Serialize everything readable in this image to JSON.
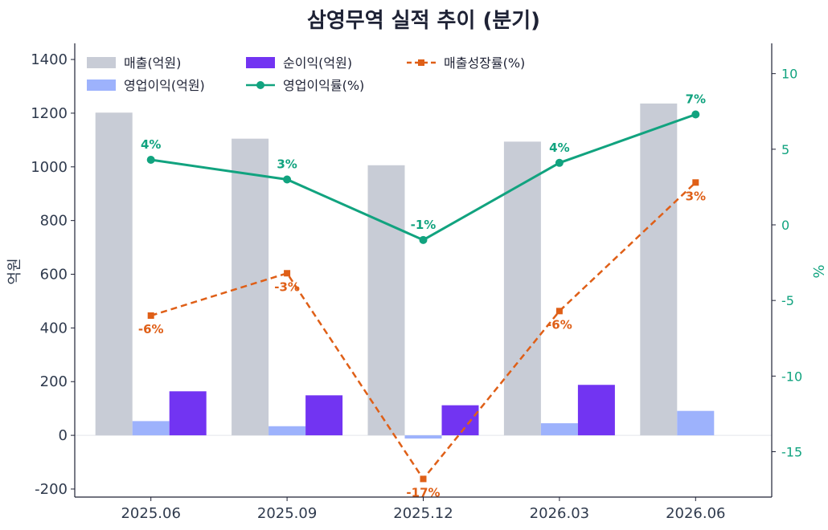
{
  "chart_data": {
    "type": "bar",
    "title": "삼영무역 실적 추이 (분기)",
    "categories": [
      "2025.06",
      "2025.09",
      "2025.12",
      "2026.03",
      "2026.06"
    ],
    "ylabel": "억원",
    "y2label": "%",
    "ylim": [
      -230,
      1460
    ],
    "y2lim": [
      -18,
      12
    ],
    "yticks": [
      -200,
      0,
      200,
      400,
      600,
      800,
      1000,
      1200,
      1400
    ],
    "y2ticks": [
      -15,
      -10,
      -5,
      0,
      5,
      10
    ],
    "legend_placement": "top-left",
    "grid": false,
    "series": [
      {
        "name": "매출(억원)",
        "type": "bar",
        "axis": "left",
        "color": "#c8ccd6",
        "values": [
          1202,
          1105,
          1006,
          1094,
          1236
        ]
      },
      {
        "name": "영업이익(억원)",
        "type": "bar",
        "axis": "left",
        "color": "#9db2fc",
        "values": [
          53,
          34,
          -12,
          45,
          91
        ]
      },
      {
        "name": "순이익(억원)",
        "type": "bar",
        "axis": "left",
        "color": "#7234f2",
        "values": [
          164,
          149,
          112,
          188,
          null
        ]
      },
      {
        "name": "영업이익률(%)",
        "type": "line",
        "axis": "right",
        "color": "#11a37f",
        "values": [
          4.3,
          3.0,
          -1.0,
          4.1,
          7.3
        ],
        "labels": [
          "4%",
          "3%",
          "-1%",
          "4%",
          "7%"
        ]
      },
      {
        "name": "매출성장률(%)",
        "type": "line",
        "axis": "right",
        "dashed": true,
        "color": "#df5f17",
        "values": [
          -6.0,
          -3.2,
          -16.8,
          -5.7,
          2.8
        ],
        "labels": [
          "-6%",
          "-3%",
          "-17%",
          "-6%",
          "3%"
        ]
      }
    ]
  }
}
